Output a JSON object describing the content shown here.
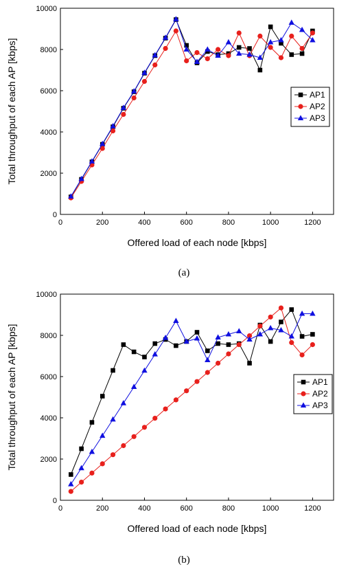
{
  "chart_data": [
    {
      "type": "line",
      "panel_label": "(a)",
      "xlabel": "Offered load of each node [kbps]",
      "ylabel": "Total throughput of each AP [kbps]",
      "xlim": [
        0,
        1300
      ],
      "ylim": [
        0,
        10000
      ],
      "xticks": [
        0,
        200,
        400,
        600,
        800,
        1000,
        1200
      ],
      "yticks": [
        0,
        2000,
        4000,
        6000,
        8000,
        10000
      ],
      "grid": false,
      "legend_position": "right-middle",
      "x": [
        50,
        100,
        150,
        200,
        250,
        300,
        350,
        400,
        450,
        500,
        550,
        600,
        650,
        700,
        750,
        800,
        850,
        900,
        950,
        1000,
        1050,
        1100,
        1150,
        1200
      ],
      "series": [
        {
          "name": "AP1",
          "color": "#000000",
          "marker": "square",
          "values": [
            850,
            1700,
            2550,
            3400,
            4250,
            5150,
            5950,
            6850,
            7700,
            8550,
            9450,
            8200,
            7350,
            7900,
            7750,
            7800,
            8100,
            8050,
            7000,
            9100,
            8300,
            7750,
            7800,
            8900
          ]
        },
        {
          "name": "AP2",
          "color": "#e8201c",
          "marker": "circle",
          "values": [
            800,
            1600,
            2400,
            3200,
            4050,
            4850,
            5650,
            6450,
            7250,
            8050,
            8900,
            7450,
            7850,
            7550,
            8000,
            7700,
            8800,
            7700,
            8650,
            8100,
            7600,
            8650,
            8050,
            8800
          ]
        },
        {
          "name": "AP3",
          "color": "#1010e0",
          "marker": "triangle",
          "values": [
            870,
            1720,
            2570,
            3420,
            4280,
            5170,
            5970,
            6870,
            7720,
            8570,
            9470,
            8000,
            7400,
            8000,
            7700,
            8350,
            7800,
            7750,
            7600,
            8350,
            8450,
            9300,
            8950,
            8450
          ]
        }
      ]
    },
    {
      "type": "line",
      "panel_label": "(b)",
      "xlabel": "Offered load of each node [kbps]",
      "ylabel": "Total throughput of each AP [kbps]",
      "xlim": [
        0,
        1300
      ],
      "ylim": [
        0,
        10000
      ],
      "xticks": [
        0,
        200,
        400,
        600,
        800,
        1000,
        1200
      ],
      "yticks": [
        0,
        2000,
        4000,
        6000,
        8000,
        10000
      ],
      "grid": false,
      "legend_position": "left-middle",
      "x": [
        50,
        100,
        150,
        200,
        250,
        300,
        350,
        400,
        450,
        500,
        550,
        600,
        650,
        700,
        750,
        800,
        850,
        900,
        950,
        1000,
        1050,
        1100,
        1150,
        1200
      ],
      "series": [
        {
          "name": "AP1",
          "color": "#000000",
          "marker": "square",
          "values": [
            1250,
            2500,
            3780,
            5050,
            6300,
            7550,
            7200,
            6950,
            7600,
            7800,
            7500,
            7700,
            8150,
            7250,
            7600,
            7550,
            7600,
            6650,
            8500,
            7700,
            8650,
            9250,
            7950,
            8050
          ]
        },
        {
          "name": "AP2",
          "color": "#e8201c",
          "marker": "circle",
          "values": [
            430,
            880,
            1320,
            1770,
            2210,
            2650,
            3090,
            3540,
            3980,
            4430,
            4870,
            5310,
            5760,
            6200,
            6650,
            7100,
            7550,
            7980,
            8450,
            8890,
            9330,
            7650,
            7050,
            7550
          ]
        },
        {
          "name": "AP3",
          "color": "#1010e0",
          "marker": "triangle",
          "values": [
            780,
            1560,
            2350,
            3130,
            3920,
            4710,
            5500,
            6290,
            7080,
            7880,
            8700,
            7700,
            7850,
            6800,
            7900,
            8050,
            8200,
            7800,
            8050,
            8350,
            8250,
            7950,
            9050,
            9050
          ]
        }
      ]
    }
  ]
}
